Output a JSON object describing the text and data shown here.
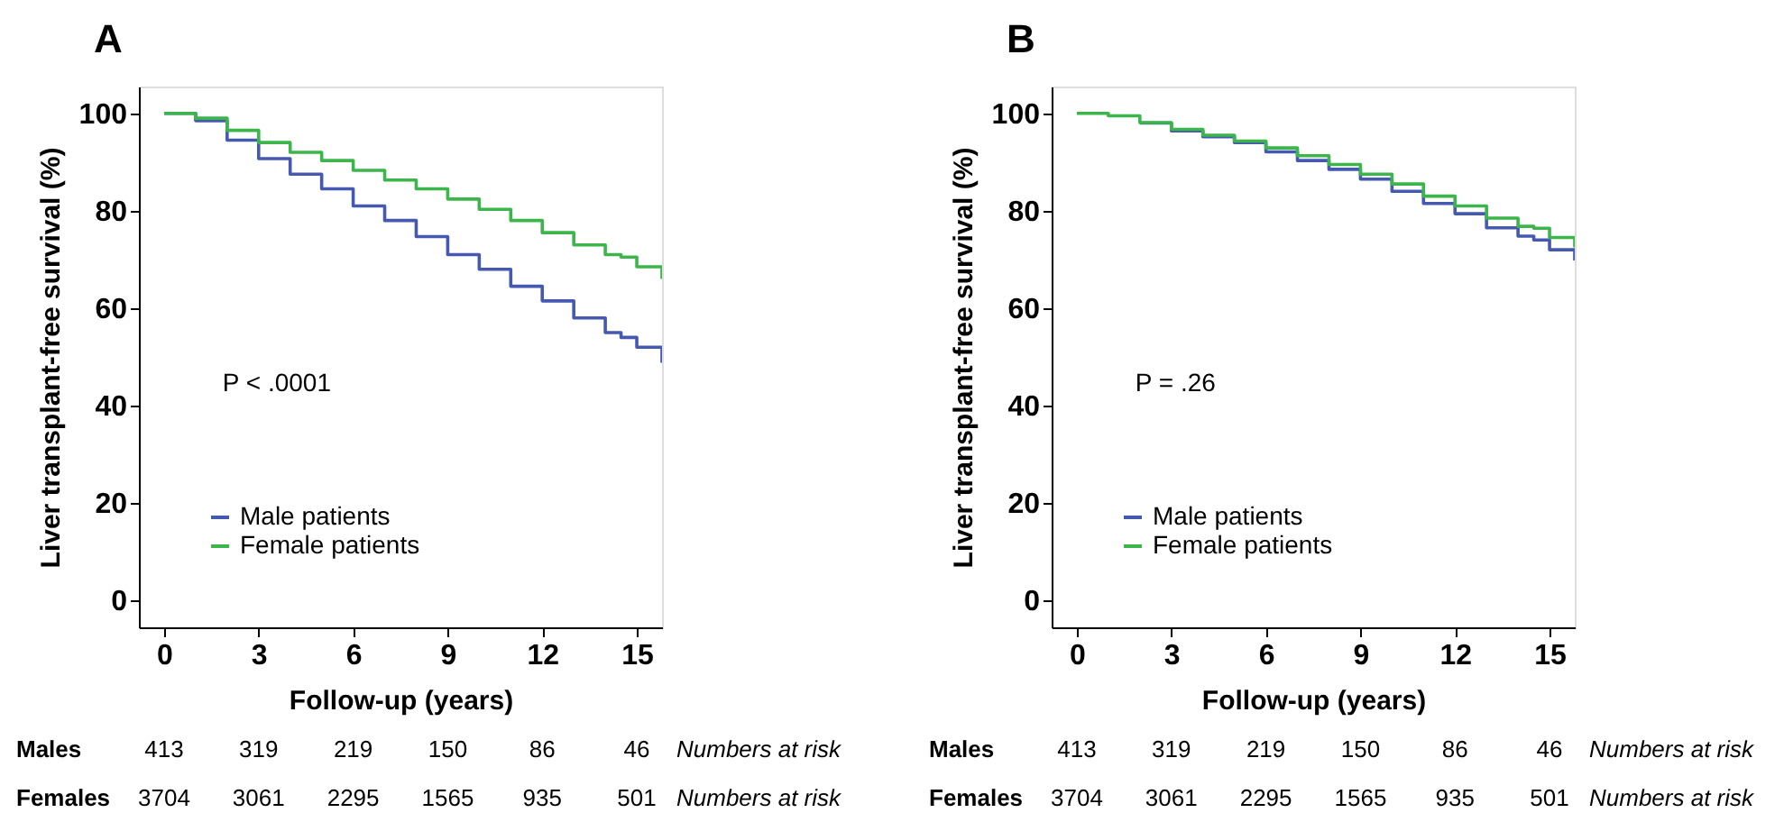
{
  "chart_data": [
    {
      "type": "step",
      "title": "A",
      "xlabel": "Follow-up (years)",
      "ylabel": "Liver transplant-free survival (%)",
      "xlim": [
        -0.8,
        15.8
      ],
      "ylim": [
        -5.5,
        105.5
      ],
      "xticks": [
        0,
        3,
        6,
        9,
        12,
        15
      ],
      "yticks": [
        0,
        20,
        40,
        60,
        80,
        100
      ],
      "legend": "bottom left",
      "line_style": "solid",
      "x": [
        0,
        0.5,
        1,
        2,
        3,
        4,
        5,
        6,
        7,
        8,
        9,
        10,
        11,
        12,
        13,
        14,
        14.5,
        15,
        15.8
      ],
      "series": [
        {
          "name": "Male patients",
          "color": "#4659b0",
          "values": [
            100,
            100,
            98.5,
            94.5,
            90.7,
            87.5,
            84.5,
            81,
            78,
            74.7,
            71,
            68,
            64.5,
            61.5,
            58,
            55,
            54,
            52,
            48.8
          ]
        },
        {
          "name": "Female patients",
          "color": "#3cb54a",
          "values": [
            100,
            100,
            99,
            96.5,
            94,
            92,
            90.3,
            88.3,
            86.3,
            84.5,
            82.4,
            80.3,
            78,
            75.5,
            73,
            71,
            70.5,
            68.5,
            66
          ]
        }
      ],
      "annotations": [
        "P < .0001",
        "Males",
        "413",
        "319",
        "219",
        "150",
        "86",
        "46",
        "Numbers at risk",
        "Females",
        "3704",
        "3061",
        "2295",
        "1565",
        "935",
        "501",
        "Numbers at risk"
      ]
    },
    {
      "type": "step",
      "title": "B",
      "xlabel": "Follow-up (years)",
      "ylabel": "Liver transplant-free survival (%)",
      "xlim": [
        -0.8,
        15.8
      ],
      "ylim": [
        -5.5,
        105.5
      ],
      "xticks": [
        0,
        3,
        6,
        9,
        12,
        15
      ],
      "yticks": [
        0,
        20,
        40,
        60,
        80,
        100
      ],
      "legend": "bottom left",
      "line_style": "solid",
      "x": [
        0,
        0.5,
        1,
        2,
        3,
        4,
        5,
        6,
        7,
        8,
        9,
        10,
        11,
        12,
        13,
        14,
        14.5,
        15,
        15.8
      ],
      "series": [
        {
          "name": "Male patients",
          "color": "#4659b0",
          "values": [
            null,
            null,
            null,
            98,
            96.4,
            95.2,
            94,
            92.1,
            90.3,
            88.5,
            86.5,
            84,
            81.5,
            79.4,
            76.5,
            74.8,
            74,
            72,
            69.8
          ]
        },
        {
          "name": "Female patients",
          "color": "#3cb54a",
          "values": [
            100,
            100,
            99.5,
            98.1,
            96.7,
            95.5,
            94.3,
            92.9,
            91.3,
            89.5,
            87.5,
            85.5,
            83,
            81,
            78.5,
            76.8,
            76.4,
            74.5,
            72.5
          ]
        }
      ],
      "annotations": [
        "P = .26",
        "Males",
        "413",
        "319",
        "219",
        "150",
        "86",
        "46",
        "Numbers at risk",
        "Females",
        "3704",
        "3061",
        "2295",
        "1565",
        "935",
        "501",
        "Numbers at risk"
      ]
    }
  ]
}
